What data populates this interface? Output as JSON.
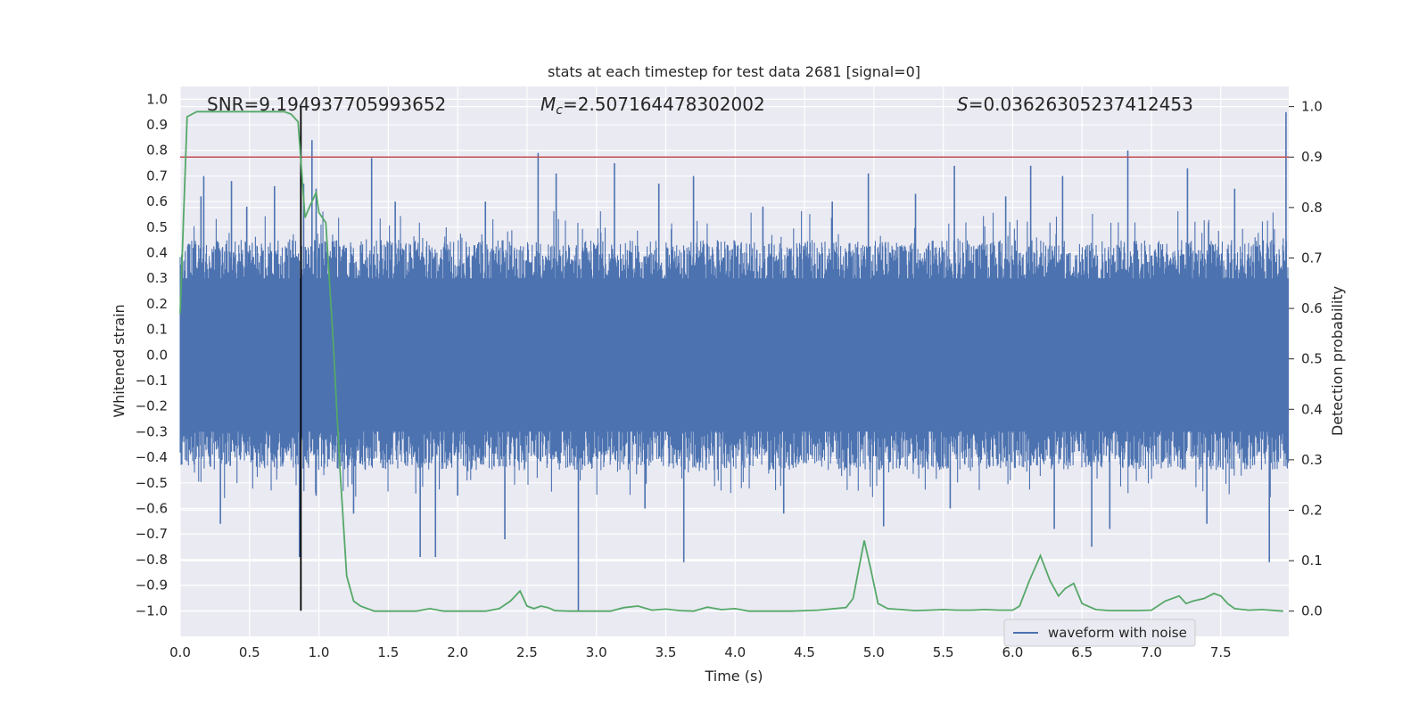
{
  "chart_data": {
    "type": "line",
    "title": "stats at each timestep for test data 2681 [signal=0]",
    "xlabel": "Time (s)",
    "ylabel": "Whitened strain",
    "y2label": "Detection probability",
    "xlim": [
      0.0,
      7.99
    ],
    "ylim": [
      -1.1,
      1.05
    ],
    "y2lim": [
      -0.05,
      1.04
    ],
    "xticks": [
      "0.0",
      "0.5",
      "1.0",
      "1.5",
      "2.0",
      "2.5",
      "3.0",
      "3.5",
      "4.0",
      "4.5",
      "5.0",
      "5.5",
      "6.0",
      "6.5",
      "7.0",
      "7.5"
    ],
    "xtick_values": [
      0,
      0.5,
      1,
      1.5,
      2,
      2.5,
      3,
      3.5,
      4,
      4.5,
      5,
      5.5,
      6,
      6.5,
      7,
      7.5
    ],
    "yticks": [
      "1.0",
      "0.9",
      "0.8",
      "0.7",
      "0.6",
      "0.5",
      "0.4",
      "0.3",
      "0.2",
      "0.1",
      "0.0",
      "−0.1",
      "−0.2",
      "−0.3",
      "−0.4",
      "−0.5",
      "−0.6",
      "−0.7",
      "−0.8",
      "−0.9",
      "−1.0"
    ],
    "ytick_values": [
      1,
      0.9,
      0.8,
      0.7,
      0.6,
      0.5,
      0.4,
      0.3,
      0.2,
      0.1,
      0,
      -0.1,
      -0.2,
      -0.3,
      -0.4,
      -0.5,
      -0.6,
      -0.7,
      -0.8,
      -0.9,
      -1.0
    ],
    "y2ticks": [
      "1.0",
      "0.9",
      "0.8",
      "0.7",
      "0.6",
      "0.5",
      "0.4",
      "0.3",
      "0.2",
      "0.1",
      "0.0"
    ],
    "y2tick_values": [
      1,
      0.9,
      0.8,
      0.7,
      0.6,
      0.5,
      0.4,
      0.3,
      0.2,
      0.1,
      0
    ],
    "annotations": {
      "snr": "SNR=9.194937705993652",
      "mc_symbol": "M",
      "mc_sub": "c",
      "mc_value": "=2.507164478302002",
      "s_symbol": "S",
      "s_value": "=0.03626305237412453"
    },
    "legend": {
      "label": "waveform with noise",
      "position": "lower-right"
    },
    "threshold_line": {
      "y2": 0.9,
      "color": "#c44e52"
    },
    "marker_line": {
      "x": 0.87,
      "y_from": -1.0,
      "y_to": 0.97,
      "color": "#000000"
    },
    "waveform": {
      "name": "waveform with noise",
      "color": "#4c72b0",
      "duration": 7.99,
      "typical_min": -0.45,
      "typical_max": 0.45,
      "spikes": [
        {
          "t": 0.15,
          "v": 0.62
        },
        {
          "t": 0.17,
          "v": 0.7
        },
        {
          "t": 0.29,
          "v": -0.66
        },
        {
          "t": 0.37,
          "v": 0.68
        },
        {
          "t": 0.48,
          "v": 0.58
        },
        {
          "t": 0.68,
          "v": 0.66
        },
        {
          "t": 0.86,
          "v": -0.79
        },
        {
          "t": 0.95,
          "v": 0.84
        },
        {
          "t": 0.89,
          "v": 0.67
        },
        {
          "t": 0.98,
          "v": 0.65
        },
        {
          "t": 1.38,
          "v": 0.77
        },
        {
          "t": 1.73,
          "v": -0.79
        },
        {
          "t": 1.84,
          "v": -0.79
        },
        {
          "t": 2.34,
          "v": -0.72
        },
        {
          "t": 2.58,
          "v": 0.79
        },
        {
          "t": 2.71,
          "v": 0.71
        },
        {
          "t": 2.87,
          "v": -1.0
        },
        {
          "t": 3.13,
          "v": 0.75
        },
        {
          "t": 3.7,
          "v": 0.7
        },
        {
          "t": 3.63,
          "v": -0.81
        },
        {
          "t": 4.96,
          "v": 0.71
        },
        {
          "t": 5.07,
          "v": -0.67
        },
        {
          "t": 5.58,
          "v": 0.74
        },
        {
          "t": 6.13,
          "v": 0.74
        },
        {
          "t": 6.36,
          "v": 0.7
        },
        {
          "t": 6.57,
          "v": -0.75
        },
        {
          "t": 6.83,
          "v": 0.8
        },
        {
          "t": 7.26,
          "v": 0.73
        },
        {
          "t": 7.85,
          "v": -0.81
        },
        {
          "t": 7.97,
          "v": 0.95
        },
        {
          "t": 0.06,
          "v": 0.43
        },
        {
          "t": 1.55,
          "v": 0.6
        },
        {
          "t": 2.2,
          "v": 0.6
        },
        {
          "t": 3.45,
          "v": 0.67
        },
        {
          "t": 4.2,
          "v": 0.58
        },
        {
          "t": 4.7,
          "v": 0.6
        },
        {
          "t": 5.3,
          "v": 0.63
        },
        {
          "t": 5.95,
          "v": 0.62
        },
        {
          "t": 6.7,
          "v": -0.68
        },
        {
          "t": 7.6,
          "v": 0.65
        },
        {
          "t": 0.98,
          "v": -0.55
        },
        {
          "t": 1.25,
          "v": -0.62
        },
        {
          "t": 2.0,
          "v": -0.55
        },
        {
          "t": 3.35,
          "v": -0.6
        },
        {
          "t": 4.35,
          "v": -0.62
        },
        {
          "t": 5.55,
          "v": -0.6
        },
        {
          "t": 6.3,
          "v": -0.68
        },
        {
          "t": 7.4,
          "v": -0.66
        }
      ]
    },
    "probability": {
      "name": "detection probability",
      "color": "#55a868",
      "x": [
        0.0,
        0.05,
        0.12,
        0.2,
        0.3,
        0.4,
        0.5,
        0.6,
        0.7,
        0.75,
        0.8,
        0.85,
        0.9,
        0.93,
        0.98,
        1.0,
        1.05,
        1.1,
        1.15,
        1.2,
        1.25,
        1.3,
        1.35,
        1.4,
        1.45,
        1.5,
        1.6,
        1.7,
        1.8,
        1.9,
        2.0,
        2.1,
        2.2,
        2.3,
        2.38,
        2.45,
        2.5,
        2.55,
        2.6,
        2.65,
        2.7,
        2.8,
        2.9,
        3.0,
        3.1,
        3.2,
        3.3,
        3.4,
        3.5,
        3.6,
        3.7,
        3.8,
        3.9,
        4.0,
        4.1,
        4.2,
        4.4,
        4.6,
        4.8,
        4.85,
        4.93,
        4.98,
        5.03,
        5.1,
        5.2,
        5.3,
        5.4,
        5.5,
        5.6,
        5.7,
        5.8,
        5.9,
        6.0,
        6.05,
        6.12,
        6.2,
        6.27,
        6.33,
        6.38,
        6.44,
        6.5,
        6.6,
        6.7,
        6.8,
        6.9,
        7.0,
        7.1,
        7.2,
        7.25,
        7.3,
        7.38,
        7.45,
        7.5,
        7.55,
        7.6,
        7.7,
        7.8,
        7.95
      ],
      "values": [
        0.59,
        0.98,
        0.99,
        0.99,
        0.99,
        0.99,
        0.99,
        0.99,
        0.99,
        0.99,
        0.985,
        0.97,
        0.78,
        0.8,
        0.83,
        0.79,
        0.77,
        0.55,
        0.29,
        0.07,
        0.02,
        0.01,
        0.005,
        0.0,
        0.0,
        0.0,
        0.0,
        0.0,
        0.005,
        0.0,
        0.0,
        0.0,
        0.0,
        0.005,
        0.02,
        0.04,
        0.01,
        0.005,
        0.01,
        0.007,
        0.001,
        0.0,
        0.0,
        0.0,
        0.0,
        0.007,
        0.01,
        0.002,
        0.004,
        0.001,
        0.0,
        0.008,
        0.003,
        0.005,
        0.0,
        0.0,
        0.0,
        0.002,
        0.007,
        0.025,
        0.14,
        0.08,
        0.015,
        0.005,
        0.003,
        0.001,
        0.002,
        0.003,
        0.002,
        0.002,
        0.003,
        0.002,
        0.002,
        0.01,
        0.06,
        0.11,
        0.06,
        0.03,
        0.045,
        0.055,
        0.015,
        0.003,
        0.001,
        0.001,
        0.001,
        0.002,
        0.02,
        0.03,
        0.015,
        0.02,
        0.025,
        0.035,
        0.03,
        0.015,
        0.005,
        0.002,
        0.003,
        0.0
      ]
    }
  }
}
